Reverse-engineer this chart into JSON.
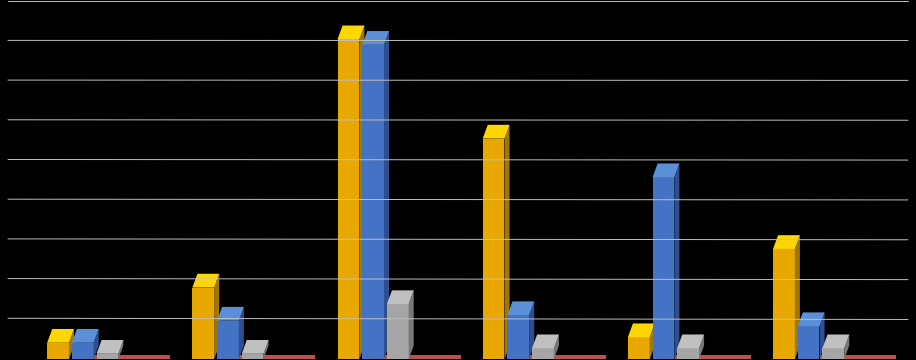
{
  "groups": 6,
  "series_order": [
    "yellow",
    "blue",
    "gray",
    "orange"
  ],
  "colors": [
    "#E8A800",
    "#4472C4",
    "#A5A5A5",
    "#C0504D"
  ],
  "dark_colors": [
    "#A07800",
    "#2E4F8F",
    "#787878",
    "#8B2020"
  ],
  "top_colors": [
    "#FFD700",
    "#5B8FD8",
    "#C0C0C0",
    "#D06060"
  ],
  "values": [
    [
      3,
      3,
      1,
      0
    ],
    [
      13,
      7,
      1,
      0
    ],
    [
      58,
      57,
      10,
      0
    ],
    [
      40,
      8,
      2,
      0
    ],
    [
      4,
      33,
      2,
      0
    ],
    [
      20,
      6,
      2,
      0
    ]
  ],
  "ylim": [
    0,
    65
  ],
  "background_color": "#000000",
  "grid_color": "#C0C0C0",
  "bar_width": 0.15,
  "n_gridlines": 9
}
